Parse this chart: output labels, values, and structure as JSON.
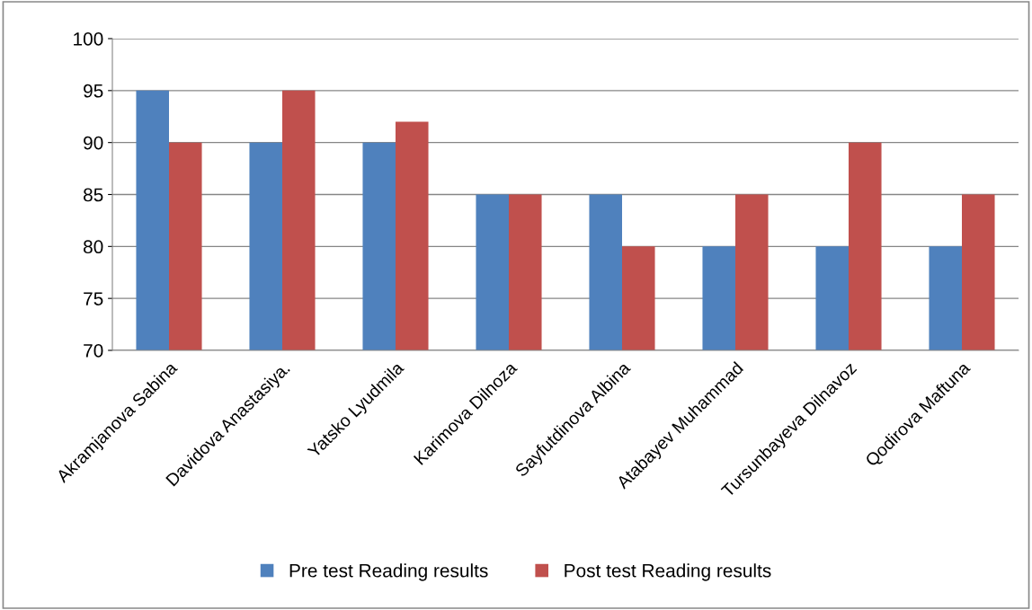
{
  "chart_data": {
    "type": "bar",
    "categories": [
      "Akramjanova Sabina",
      "Davidova Anastasiya.",
      "Yatsko Lyudmila",
      "Karimova Dilnoza",
      "Sayfutdinova Albina",
      "Atabayev Muhammad",
      "Tursunbayeva Dilnavoz",
      "Qodirova Maftuna"
    ],
    "series": [
      {
        "name": "Pre test Reading results",
        "color": "#4f81bd",
        "values": [
          95,
          90,
          90,
          85,
          85,
          80,
          80,
          80
        ]
      },
      {
        "name": "Post test Reading results",
        "color": "#c0504d",
        "values": [
          90,
          95,
          92,
          85,
          80,
          85,
          90,
          85
        ]
      }
    ],
    "ylim": [
      70,
      100
    ],
    "yticks": [
      70,
      75,
      80,
      85,
      90,
      95,
      100
    ],
    "grid": "y",
    "legend": "bottom"
  }
}
